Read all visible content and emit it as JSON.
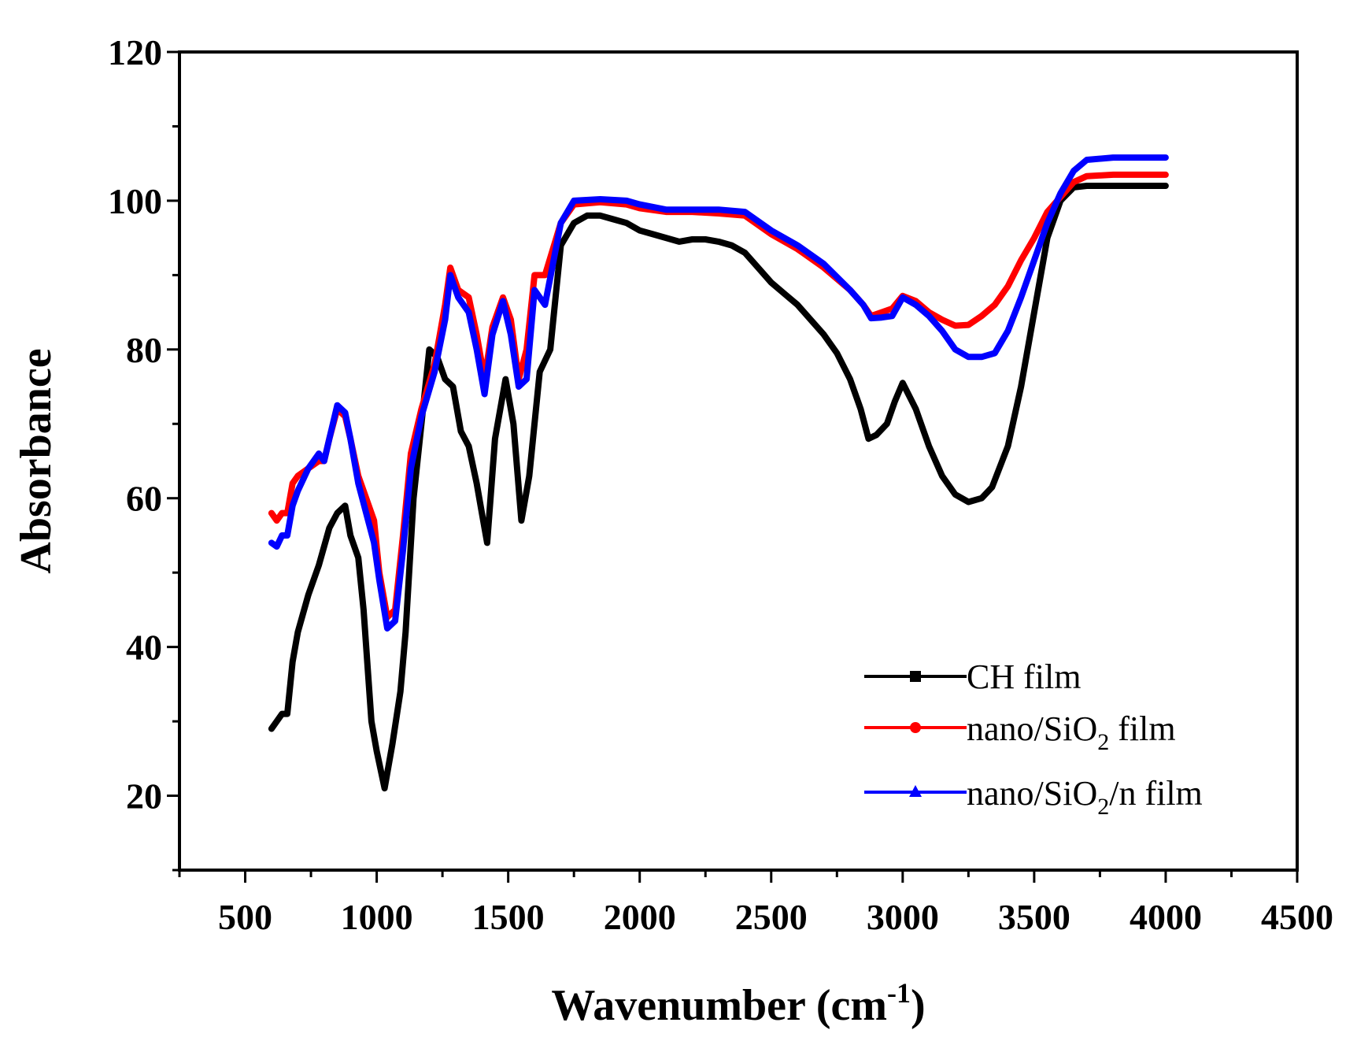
{
  "chart_data": {
    "type": "line",
    "xlabel": "Wavenumber (cm-1)",
    "xlabel_parts": {
      "main": "Wavenumber (cm",
      "sup": "-1",
      "close": ")"
    },
    "ylabel": "Absorbance",
    "xlim": [
      250,
      4500
    ],
    "ylim": [
      10,
      120
    ],
    "x_ticks": [
      500,
      1000,
      1500,
      2000,
      2500,
      3000,
      3500,
      4000,
      4500
    ],
    "y_ticks": [
      20,
      40,
      60,
      80,
      100,
      120
    ],
    "legend_position": "bottom-right",
    "grid": false,
    "series": [
      {
        "name": "CH film",
        "legend": {
          "text": "CH film"
        },
        "color": "#000000",
        "marker": "square",
        "points": [
          [
            600,
            29
          ],
          [
            620,
            30
          ],
          [
            640,
            31
          ],
          [
            660,
            31
          ],
          [
            680,
            38
          ],
          [
            700,
            42
          ],
          [
            740,
            47
          ],
          [
            780,
            51
          ],
          [
            820,
            56
          ],
          [
            850,
            58
          ],
          [
            880,
            59
          ],
          [
            900,
            55
          ],
          [
            930,
            52
          ],
          [
            950,
            45
          ],
          [
            980,
            30
          ],
          [
            1000,
            26
          ],
          [
            1030,
            21
          ],
          [
            1060,
            27
          ],
          [
            1090,
            34
          ],
          [
            1110,
            42
          ],
          [
            1140,
            60
          ],
          [
            1170,
            70
          ],
          [
            1200,
            80
          ],
          [
            1230,
            79
          ],
          [
            1260,
            76
          ],
          [
            1290,
            75
          ],
          [
            1320,
            69
          ],
          [
            1350,
            67
          ],
          [
            1380,
            62
          ],
          [
            1400,
            58
          ],
          [
            1420,
            54
          ],
          [
            1450,
            68
          ],
          [
            1490,
            76
          ],
          [
            1520,
            70
          ],
          [
            1550,
            57
          ],
          [
            1580,
            63
          ],
          [
            1620,
            77
          ],
          [
            1660,
            80
          ],
          [
            1700,
            94
          ],
          [
            1750,
            97
          ],
          [
            1800,
            98
          ],
          [
            1850,
            98
          ],
          [
            1900,
            97.5
          ],
          [
            1950,
            97
          ],
          [
            2000,
            96
          ],
          [
            2050,
            95.5
          ],
          [
            2100,
            95
          ],
          [
            2150,
            94.5
          ],
          [
            2200,
            94.8
          ],
          [
            2250,
            94.8
          ],
          [
            2300,
            94.5
          ],
          [
            2350,
            94
          ],
          [
            2400,
            93
          ],
          [
            2450,
            91
          ],
          [
            2500,
            89
          ],
          [
            2550,
            87.5
          ],
          [
            2600,
            86
          ],
          [
            2650,
            84
          ],
          [
            2700,
            82
          ],
          [
            2750,
            79.5
          ],
          [
            2800,
            76
          ],
          [
            2840,
            72
          ],
          [
            2870,
            68
          ],
          [
            2900,
            68.5
          ],
          [
            2940,
            70
          ],
          [
            2970,
            73
          ],
          [
            3000,
            75.5
          ],
          [
            3050,
            72
          ],
          [
            3100,
            67
          ],
          [
            3150,
            63
          ],
          [
            3200,
            60.5
          ],
          [
            3250,
            59.5
          ],
          [
            3300,
            60
          ],
          [
            3340,
            61.5
          ],
          [
            3400,
            67
          ],
          [
            3450,
            75
          ],
          [
            3500,
            85
          ],
          [
            3550,
            95
          ],
          [
            3600,
            100
          ],
          [
            3650,
            101.8
          ],
          [
            3700,
            102
          ],
          [
            3800,
            102
          ],
          [
            3900,
            102
          ],
          [
            4000,
            102
          ]
        ]
      },
      {
        "name": "nano/SiO2 film",
        "legend": {
          "pre": "nano/SiO",
          "sub": "2",
          "post": " film"
        },
        "color": "#ff0000",
        "marker": "circle",
        "points": [
          [
            600,
            58
          ],
          [
            620,
            57
          ],
          [
            640,
            58
          ],
          [
            660,
            58
          ],
          [
            680,
            62
          ],
          [
            700,
            63
          ],
          [
            740,
            64
          ],
          [
            780,
            65
          ],
          [
            800,
            65
          ],
          [
            820,
            68
          ],
          [
            850,
            72
          ],
          [
            880,
            71
          ],
          [
            900,
            68
          ],
          [
            930,
            63
          ],
          [
            960,
            60
          ],
          [
            990,
            57
          ],
          [
            1010,
            50
          ],
          [
            1040,
            44
          ],
          [
            1070,
            45
          ],
          [
            1100,
            55
          ],
          [
            1130,
            66
          ],
          [
            1170,
            72
          ],
          [
            1220,
            78
          ],
          [
            1260,
            86
          ],
          [
            1280,
            91
          ],
          [
            1310,
            88
          ],
          [
            1350,
            87
          ],
          [
            1380,
            82
          ],
          [
            1410,
            76
          ],
          [
            1440,
            83
          ],
          [
            1480,
            87
          ],
          [
            1510,
            84
          ],
          [
            1540,
            76
          ],
          [
            1570,
            80
          ],
          [
            1600,
            90
          ],
          [
            1640,
            90
          ],
          [
            1700,
            97
          ],
          [
            1750,
            99.5
          ],
          [
            1850,
            99.8
          ],
          [
            1950,
            99.5
          ],
          [
            2000,
            99
          ],
          [
            2100,
            98.5
          ],
          [
            2200,
            98.5
          ],
          [
            2300,
            98.3
          ],
          [
            2400,
            98
          ],
          [
            2500,
            95.5
          ],
          [
            2600,
            93.5
          ],
          [
            2700,
            91
          ],
          [
            2800,
            88
          ],
          [
            2850,
            86
          ],
          [
            2880,
            84.5
          ],
          [
            2920,
            85
          ],
          [
            2960,
            85.5
          ],
          [
            3000,
            87.2
          ],
          [
            3050,
            86.5
          ],
          [
            3100,
            85
          ],
          [
            3150,
            84
          ],
          [
            3200,
            83.2
          ],
          [
            3250,
            83.3
          ],
          [
            3300,
            84.5
          ],
          [
            3350,
            86
          ],
          [
            3400,
            88.5
          ],
          [
            3450,
            92
          ],
          [
            3500,
            95
          ],
          [
            3550,
            98.5
          ],
          [
            3600,
            100.5
          ],
          [
            3650,
            102.5
          ],
          [
            3700,
            103.3
          ],
          [
            3800,
            103.5
          ],
          [
            4000,
            103.5
          ]
        ]
      },
      {
        "name": "nano/SiO2/n film",
        "legend": {
          "pre": "nano/SiO",
          "sub": "2",
          "post": "/n film"
        },
        "color": "#0000ff",
        "marker": "triangle",
        "points": [
          [
            600,
            54
          ],
          [
            620,
            53.5
          ],
          [
            640,
            55
          ],
          [
            660,
            55
          ],
          [
            680,
            59
          ],
          [
            700,
            61
          ],
          [
            740,
            64
          ],
          [
            780,
            66
          ],
          [
            800,
            65
          ],
          [
            820,
            68
          ],
          [
            850,
            72.5
          ],
          [
            880,
            71.5
          ],
          [
            900,
            68
          ],
          [
            930,
            62
          ],
          [
            960,
            58
          ],
          [
            990,
            54
          ],
          [
            1010,
            49
          ],
          [
            1040,
            42.5
          ],
          [
            1070,
            43.5
          ],
          [
            1100,
            53
          ],
          [
            1130,
            64
          ],
          [
            1170,
            71
          ],
          [
            1220,
            77
          ],
          [
            1260,
            84
          ],
          [
            1280,
            90
          ],
          [
            1310,
            87
          ],
          [
            1350,
            85
          ],
          [
            1380,
            80
          ],
          [
            1410,
            74
          ],
          [
            1440,
            82
          ],
          [
            1480,
            86.5
          ],
          [
            1510,
            82
          ],
          [
            1540,
            75
          ],
          [
            1570,
            76
          ],
          [
            1600,
            88
          ],
          [
            1640,
            86
          ],
          [
            1700,
            97
          ],
          [
            1750,
            100
          ],
          [
            1850,
            100.2
          ],
          [
            1950,
            100
          ],
          [
            2000,
            99.5
          ],
          [
            2100,
            98.8
          ],
          [
            2200,
            98.8
          ],
          [
            2300,
            98.8
          ],
          [
            2400,
            98.5
          ],
          [
            2500,
            96
          ],
          [
            2600,
            94
          ],
          [
            2700,
            91.5
          ],
          [
            2800,
            88
          ],
          [
            2850,
            86
          ],
          [
            2880,
            84.2
          ],
          [
            2920,
            84.3
          ],
          [
            2960,
            84.5
          ],
          [
            3000,
            87
          ],
          [
            3050,
            86
          ],
          [
            3100,
            84.5
          ],
          [
            3150,
            82.5
          ],
          [
            3200,
            80
          ],
          [
            3250,
            79
          ],
          [
            3300,
            79
          ],
          [
            3350,
            79.5
          ],
          [
            3400,
            82.5
          ],
          [
            3450,
            87
          ],
          [
            3500,
            92
          ],
          [
            3550,
            97
          ],
          [
            3600,
            101
          ],
          [
            3650,
            104
          ],
          [
            3700,
            105.5
          ],
          [
            3800,
            105.8
          ],
          [
            4000,
            105.8
          ]
        ]
      }
    ]
  }
}
